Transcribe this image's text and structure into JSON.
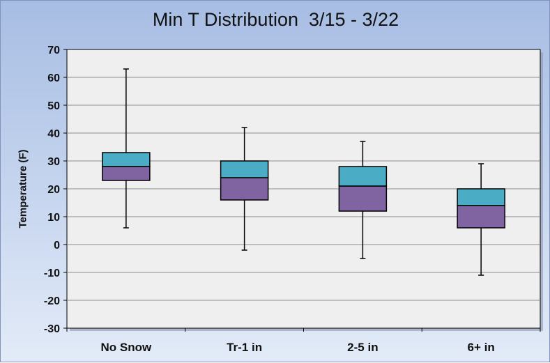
{
  "chart_data": {
    "type": "boxplot",
    "title": "Min T Distribution  3/15 - 3/22",
    "ylabel": "Temperature (F)",
    "xlabel": "",
    "ylim": [
      -30,
      70
    ],
    "yticks": [
      -30,
      -20,
      -10,
      0,
      10,
      20,
      30,
      40,
      50,
      60,
      70
    ],
    "grid": true,
    "categories": [
      "No Snow",
      "Tr-1 in",
      "2-5 in",
      "6+ in"
    ],
    "boxes": [
      {
        "min": 6,
        "q1": 23,
        "median": 28,
        "q3": 33,
        "max": 63
      },
      {
        "min": -2,
        "q1": 16,
        "median": 24,
        "q3": 30,
        "max": 42
      },
      {
        "min": -5,
        "q1": 12,
        "median": 21,
        "q3": 28,
        "max": 37
      },
      {
        "min": -11,
        "q1": 6,
        "median": 14,
        "q3": 20,
        "max": 29
      }
    ],
    "colors": {
      "lower_box": "#8064a2",
      "upper_box": "#4bacc6",
      "plot_bg": "#efefef",
      "grid": "#8c8c8c"
    }
  }
}
